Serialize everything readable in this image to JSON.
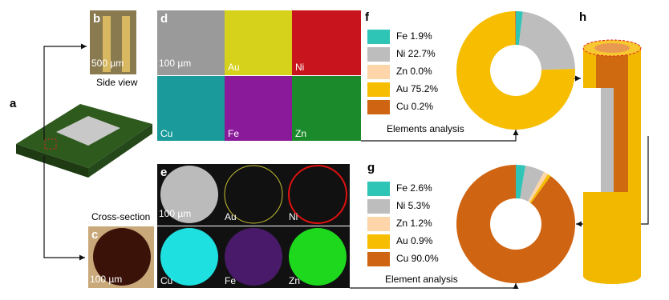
{
  "panels": {
    "a": "a",
    "b": "b",
    "c": "c",
    "d": "d",
    "e": "e",
    "f": "f",
    "g": "g",
    "h": "h",
    "b_scale": "500 µm",
    "b_caption": "Side view",
    "d_scale": "100 µm",
    "d_maps": [
      "Au",
      "Ni",
      "Cu",
      "Fe",
      "Zn"
    ],
    "e_scale": "100 µm",
    "e_maps": [
      "Au",
      "Ni",
      "Cu",
      "Fe",
      "Zn"
    ],
    "c_scale": "100 µm",
    "c_caption": "Cross-section"
  },
  "chart_data": [
    {
      "type": "pie",
      "labels": [
        "Fe 1.9%",
        "Ni 22.7%",
        "Zn 0.0%",
        "Au 75.2%",
        "Cu 0.2%"
      ],
      "values": [
        1.9,
        22.7,
        0.0,
        75.2,
        0.2
      ],
      "colors": [
        "#2ec4b6",
        "#bdbdbd",
        "#fdd5a8",
        "#f7bd00",
        "#cf6512"
      ],
      "annotation": "Elements analysis"
    },
    {
      "type": "pie",
      "labels": [
        "Fe 2.6%",
        "Ni 5.3%",
        "Zn 1.2%",
        "Au 0.9%",
        "Cu 90.0%"
      ],
      "values": [
        2.6,
        5.3,
        1.2,
        0.9,
        90.0
      ],
      "colors": [
        "#2ec4b6",
        "#bdbdbd",
        "#fdd5a8",
        "#f7bd00",
        "#cf6512"
      ],
      "annotation": "Element analysis"
    }
  ]
}
